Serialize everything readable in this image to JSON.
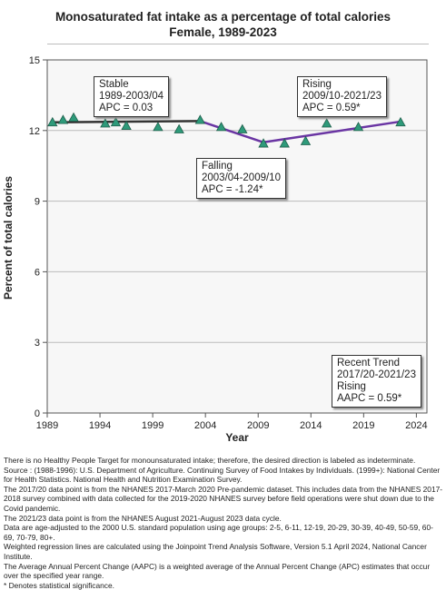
{
  "chart_data": {
    "type": "line",
    "title_line1": "Monosaturated fat intake as a percentage of total calories",
    "title_line2": "Female,  1989-2023",
    "xlabel": "Year",
    "ylabel": "Percent of total calories",
    "xlim": [
      1989,
      2025
    ],
    "ylim": [
      0,
      15
    ],
    "x_ticks": [
      1989,
      1994,
      1999,
      2004,
      2009,
      2014,
      2019,
      2024
    ],
    "y_ticks": [
      0,
      3,
      6,
      9,
      12,
      15
    ],
    "grid": "horizontal",
    "points": [
      {
        "x": 1989.5,
        "y": 12.35
      },
      {
        "x": 1990.5,
        "y": 12.45
      },
      {
        "x": 1991.5,
        "y": 12.55
      },
      {
        "x": 1994.5,
        "y": 12.3
      },
      {
        "x": 1995.5,
        "y": 12.35
      },
      {
        "x": 1996.5,
        "y": 12.2
      },
      {
        "x": 1999.5,
        "y": 12.15
      },
      {
        "x": 2001.5,
        "y": 12.05
      },
      {
        "x": 2003.5,
        "y": 12.45
      },
      {
        "x": 2005.5,
        "y": 12.15
      },
      {
        "x": 2007.5,
        "y": 12.05
      },
      {
        "x": 2009.5,
        "y": 11.45
      },
      {
        "x": 2011.5,
        "y": 11.45
      },
      {
        "x": 2013.5,
        "y": 11.55
      },
      {
        "x": 2015.5,
        "y": 12.3
      },
      {
        "x": 2018.5,
        "y": 12.15
      },
      {
        "x": 2022.5,
        "y": 12.35
      }
    ],
    "segments": [
      {
        "x": [
          1989.5,
          2003.5
        ],
        "y": [
          12.35,
          12.4
        ],
        "color": "#333333"
      },
      {
        "x": [
          2003.5,
          2009.5
        ],
        "y": [
          12.4,
          11.5
        ],
        "color": "#6a35a3"
      },
      {
        "x": [
          2009.5,
          2022.5
        ],
        "y": [
          11.5,
          12.38
        ],
        "color": "#6a35a3"
      }
    ],
    "marker_color": "#2e9a7a",
    "annotations": [
      {
        "lines": [
          "Stable",
          "1989-2003/04",
          "APC =  0.03"
        ]
      },
      {
        "lines": [
          "Rising",
          "2009/10-2021/23",
          "APC =  0.59*"
        ]
      },
      {
        "lines": [
          "Falling",
          "2003/04-2009/10",
          "APC = -1.24*"
        ]
      },
      {
        "lines": [
          "Recent Trend",
          "2017/20-2021/23",
          "Rising",
          "AAPC =  0.59*"
        ]
      }
    ]
  },
  "footnotes": [
    "There is no Healthy People Target for monounsaturated intake; therefore, the desired direction is labeled as indeterminate.",
    "Source : (1988-1996): U.S. Department of Agriculture. Continuing Survey of Food Intakes by Individuals. (1999+): National Center for Health Statistics. National Health and Nutrition Examination Survey.",
    "The 2017/20 data point is from the NHANES 2017-March 2020 Pre-pandemic dataset. This includes data from the NHANES 2017-2018 survey combined with data collected for the 2019-2020 NHANES survey before field operations were shut down due to the Covid pandemic.",
    "The 2021/23 data point is from the NHANES August 2021-August 2023 data cycle.",
    "Data are age-adjusted to the 2000 U.S. standard population using age groups: 2-5, 6-11, 12-19, 20-29, 30-39, 40-49, 50-59, 60-69, 70-79, 80+.",
    "Weighted regression lines are calculated using the Joinpoint Trend Analysis Software, Version 5.1 April 2024, National Cancer Institute.",
    "The Average Annual Percent Change (AAPC) is a weighted average of the Annual Percent Change (APC) estimates that occur over the specified year range.",
    "* Denotes statistical significance."
  ]
}
